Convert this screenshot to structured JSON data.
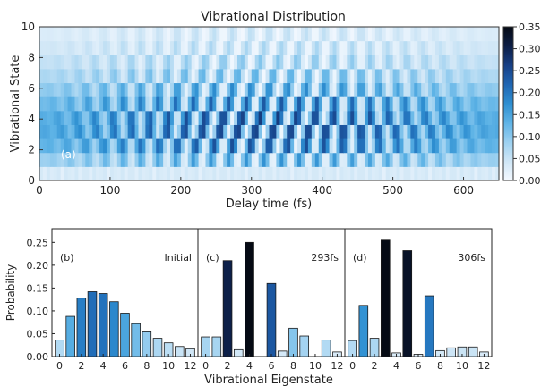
{
  "chart_data": [
    {
      "type": "heatmap",
      "title": "Vibrational Distribution",
      "xlabel": "Delay time (fs)",
      "ylabel": "Vibrational State",
      "xlim": [
        0,
        650
      ],
      "ylim": [
        0,
        10
      ],
      "xticks": [
        "0",
        "100",
        "200",
        "300",
        "400",
        "500",
        "600"
      ],
      "yticks": [
        "0",
        "2",
        "4",
        "6",
        "8",
        "10"
      ],
      "panel_label": "(a)",
      "colorbar": {
        "range": [
          0,
          0.35
        ],
        "ticks": [
          "0.00",
          "0.05",
          "0.10",
          "0.15",
          "0.20",
          "0.25",
          "0.30",
          "0.35"
        ],
        "colors": [
          "#f4f9ff",
          "#cfe6f6",
          "#9cd0f0",
          "#5eb3e6",
          "#2e8fd1",
          "#1f66b3",
          "#173f85",
          "#0c1e45",
          "#050a14"
        ]
      },
      "states": [
        0,
        1,
        2,
        3,
        4,
        5,
        6,
        7,
        8,
        9,
        10
      ],
      "initial_distribution": [
        0.036,
        0.088,
        0.128,
        0.142,
        0.138,
        0.12,
        0.095,
        0.072,
        0.054,
        0.04,
        0.03,
        0.022,
        0.017
      ]
    },
    {
      "type": "bar",
      "panel_label": "(b)",
      "annotation": "Initial",
      "x": [
        0,
        1,
        2,
        3,
        4,
        5,
        6,
        7,
        8,
        9,
        10,
        11,
        12
      ],
      "values": [
        0.036,
        0.088,
        0.128,
        0.142,
        0.138,
        0.12,
        0.095,
        0.072,
        0.054,
        0.04,
        0.03,
        0.022,
        0.017
      ],
      "ylabel": "Probability",
      "ylim": [
        0,
        0.28
      ],
      "yticks": [
        "0.00",
        "0.05",
        "0.10",
        "0.15",
        "0.20",
        "0.25"
      ],
      "xticks": [
        "0",
        "2",
        "4",
        "6",
        "8",
        "10",
        "12"
      ]
    },
    {
      "type": "bar",
      "panel_label": "(c)",
      "annotation": "293fs",
      "x": [
        0,
        1,
        2,
        3,
        4,
        5,
        6,
        7,
        8,
        9,
        10,
        11,
        12
      ],
      "values": [
        0.043,
        0.043,
        0.21,
        0.015,
        0.25,
        0.0,
        0.16,
        0.012,
        0.062,
        0.045,
        0.0,
        0.036,
        0.01
      ],
      "xticks": [
        "0",
        "2",
        "4",
        "6",
        "8",
        "10",
        "12"
      ]
    },
    {
      "type": "bar",
      "panel_label": "(d)",
      "annotation": "306fs",
      "x": [
        0,
        1,
        2,
        3,
        4,
        5,
        6,
        7,
        8,
        9,
        10,
        11,
        12
      ],
      "values": [
        0.035,
        0.112,
        0.04,
        0.255,
        0.008,
        0.232,
        0.005,
        0.133,
        0.013,
        0.019,
        0.021,
        0.021,
        0.01
      ],
      "xticks": [
        "0",
        "2",
        "4",
        "6",
        "8",
        "10",
        "12"
      ]
    }
  ],
  "shared_xlabel": "Vibrational Eigenstate"
}
